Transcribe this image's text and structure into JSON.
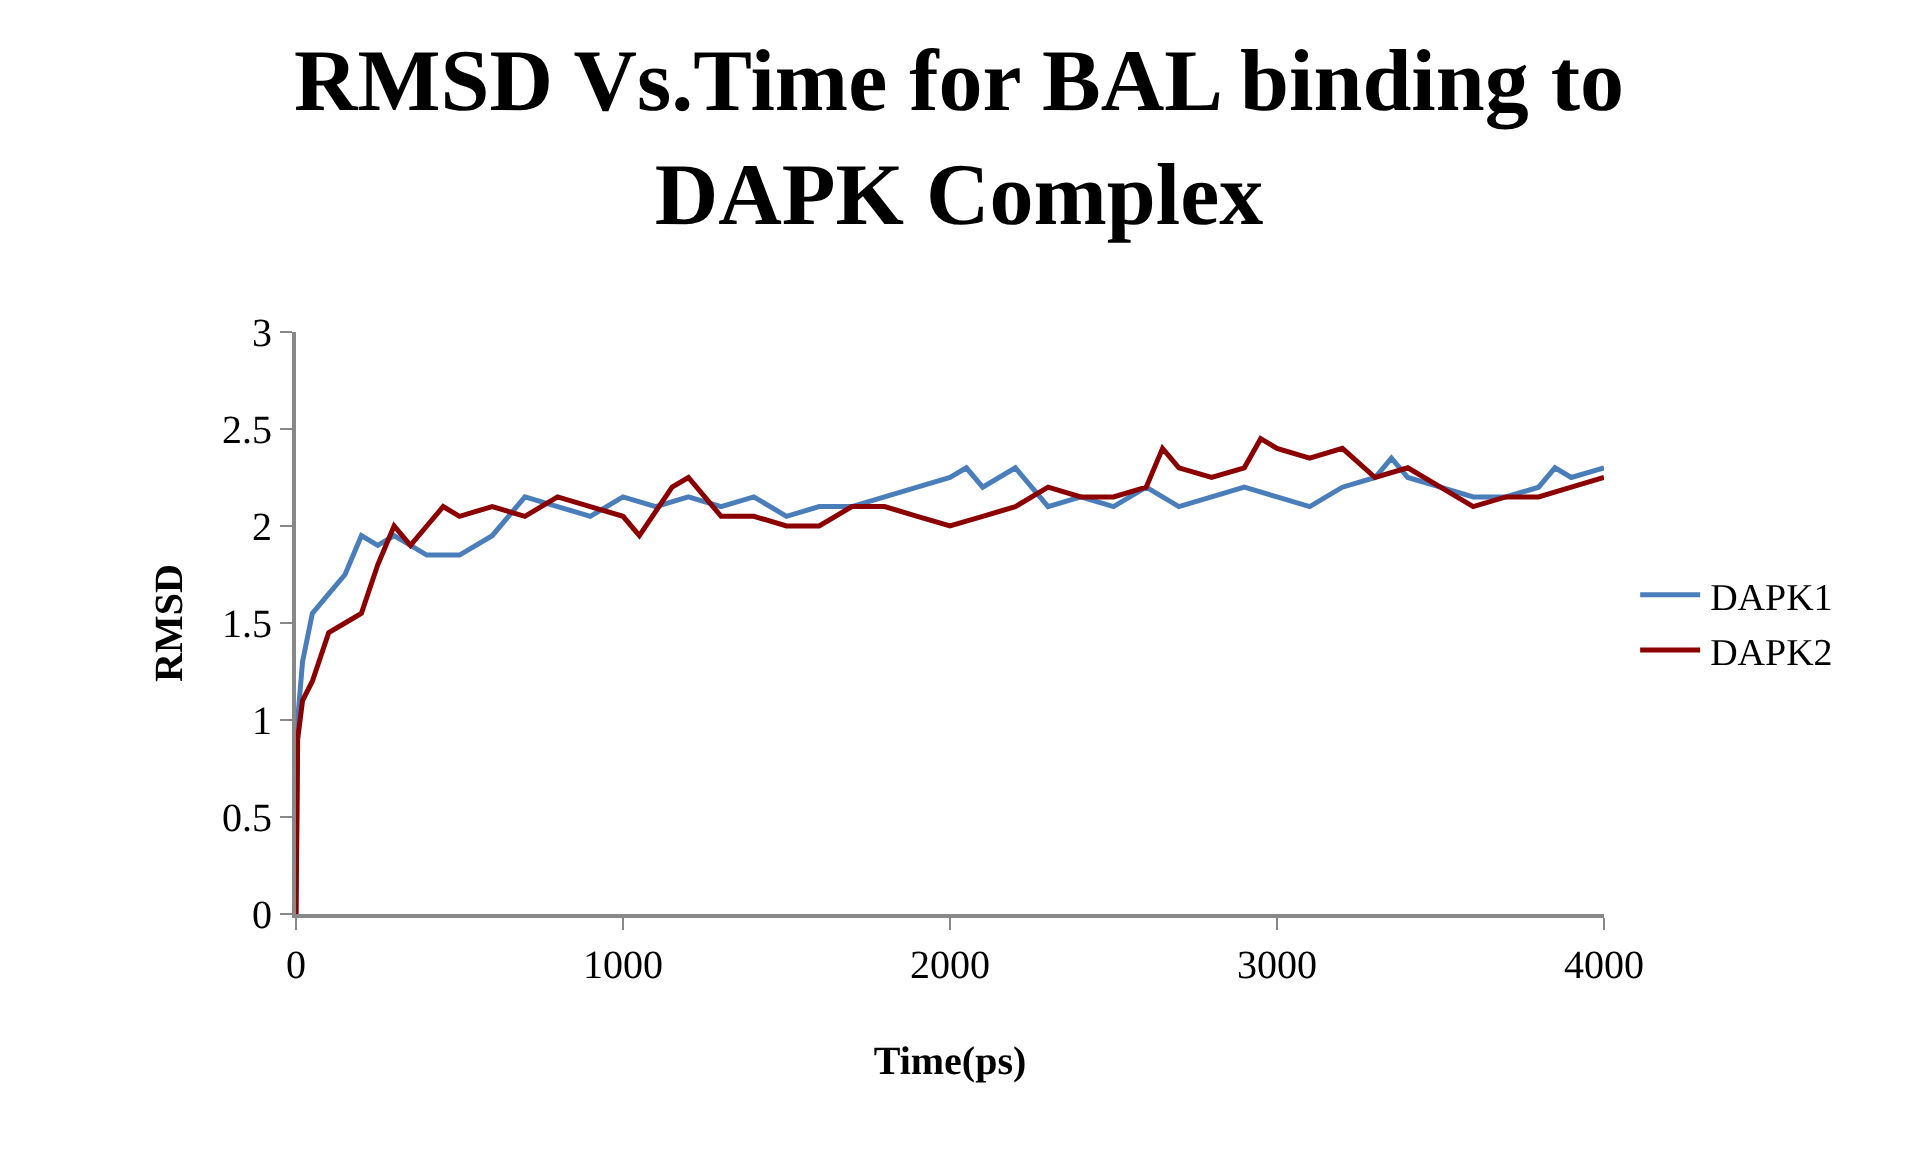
{
  "chart_data": {
    "type": "line",
    "title": "RMSD Vs.Time for BAL binding to DAPK Complex",
    "xlabel": "Time(ps)",
    "ylabel": "RMSD",
    "xlim": [
      0,
      4000
    ],
    "xticks": [
      0,
      1000,
      2000,
      3000,
      4000
    ],
    "ylim": [
      0,
      3
    ],
    "yticks": [
      0,
      0.5,
      1,
      1.5,
      2,
      2.5,
      3
    ],
    "grid": false,
    "legend": "right",
    "marker": "none",
    "line_style": "solid",
    "series": [
      {
        "name": "DAPK1",
        "color": "#4a7ebb",
        "x": [
          0,
          5,
          20,
          50,
          100,
          150,
          200,
          250,
          300,
          400,
          500,
          600,
          700,
          800,
          900,
          1000,
          1100,
          1200,
          1300,
          1400,
          1500,
          1600,
          1700,
          1800,
          1900,
          2000,
          2050,
          2100,
          2200,
          2300,
          2400,
          2500,
          2600,
          2700,
          2800,
          2900,
          3000,
          3100,
          3200,
          3300,
          3350,
          3400,
          3500,
          3600,
          3700,
          3800,
          3850,
          3900,
          4000
        ],
        "values": [
          0,
          1.0,
          1.3,
          1.55,
          1.65,
          1.75,
          1.95,
          1.9,
          1.95,
          1.85,
          1.85,
          1.95,
          2.15,
          2.1,
          2.05,
          2.15,
          2.1,
          2.15,
          2.1,
          2.15,
          2.05,
          2.1,
          2.1,
          2.15,
          2.2,
          2.25,
          2.3,
          2.2,
          2.3,
          2.1,
          2.15,
          2.1,
          2.2,
          2.1,
          2.15,
          2.2,
          2.15,
          2.1,
          2.2,
          2.25,
          2.35,
          2.25,
          2.2,
          2.15,
          2.15,
          2.2,
          2.3,
          2.25,
          2.3
        ]
      },
      {
        "name": "DAPK2",
        "color": "#8b0000",
        "x": [
          0,
          5,
          20,
          50,
          100,
          150,
          200,
          250,
          300,
          350,
          400,
          450,
          500,
          600,
          700,
          800,
          900,
          1000,
          1050,
          1150,
          1200,
          1300,
          1400,
          1500,
          1600,
          1700,
          1800,
          1900,
          2000,
          2100,
          2200,
          2300,
          2400,
          2500,
          2600,
          2650,
          2700,
          2800,
          2900,
          2950,
          3000,
          3100,
          3200,
          3300,
          3400,
          3500,
          3600,
          3700,
          3800,
          3900,
          4000
        ],
        "values": [
          0,
          0.9,
          1.1,
          1.2,
          1.45,
          1.5,
          1.55,
          1.8,
          2.0,
          1.9,
          2.0,
          2.1,
          2.05,
          2.1,
          2.05,
          2.15,
          2.1,
          2.05,
          1.95,
          2.2,
          2.25,
          2.05,
          2.05,
          2.0,
          2.0,
          2.1,
          2.1,
          2.05,
          2.0,
          2.05,
          2.1,
          2.2,
          2.15,
          2.15,
          2.2,
          2.4,
          2.3,
          2.25,
          2.3,
          2.45,
          2.4,
          2.35,
          2.4,
          2.25,
          2.3,
          2.2,
          2.1,
          2.15,
          2.15,
          2.2,
          2.25
        ]
      }
    ]
  }
}
